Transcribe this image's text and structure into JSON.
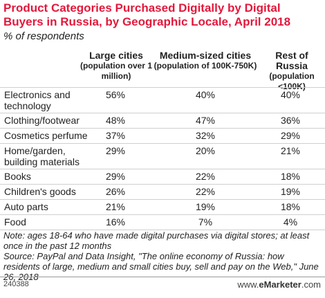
{
  "title": "Product Categories Purchased Digitally by Digital Buyers in Russia, by Geographic Locale, April 2018",
  "subtitle": "% of respondents",
  "columns": [
    {
      "main": "Large cities",
      "sub": "(population over 1 million)"
    },
    {
      "main": "Medium-sized cities",
      "sub": "(population of 100K-750K)"
    },
    {
      "main": "Rest of Russia",
      "sub": "(population <100K)"
    }
  ],
  "rows": [
    {
      "category": "Electronics and technology",
      "values": [
        "56%",
        "40%",
        "40%"
      ]
    },
    {
      "category": "Clothing/footwear",
      "values": [
        "48%",
        "47%",
        "36%"
      ]
    },
    {
      "category": "Cosmetics perfume",
      "values": [
        "37%",
        "32%",
        "29%"
      ]
    },
    {
      "category": "Home/garden, building materials",
      "values": [
        "29%",
        "20%",
        "21%"
      ]
    },
    {
      "category": "Books",
      "values": [
        "29%",
        "22%",
        "18%"
      ]
    },
    {
      "category": "Children's goods",
      "values": [
        "26%",
        "22%",
        "19%"
      ]
    },
    {
      "category": "Auto parts",
      "values": [
        "21%",
        "19%",
        "18%"
      ]
    },
    {
      "category": "Food",
      "values": [
        "16%",
        "7%",
        "4%"
      ]
    }
  ],
  "note": "Note: ages 18-64 who have made digital purchases via digital stores; at least once in the past 12 months",
  "source": "Source: PayPal and Data Insight, \"The online economy of Russia: how residents of large, medium and small cities buy, sell and pay on the Web,\" June 26, 2018",
  "footer": {
    "code": "240388",
    "brand_prefix": "www.",
    "brand_name": "eMarketer",
    "brand_suffix": ".com"
  },
  "colors": {
    "title": "#e2193c",
    "text": "#222222",
    "rule": "#cfcfcf"
  },
  "chart_data": {
    "type": "table",
    "title": "Product Categories Purchased Digitally by Digital Buyers in Russia, by Geographic Locale, April 2018",
    "subtitle": "% of respondents",
    "categories": [
      "Electronics and technology",
      "Clothing/footwear",
      "Cosmetics perfume",
      "Home/garden, building materials",
      "Books",
      "Children's goods",
      "Auto parts",
      "Food"
    ],
    "series": [
      {
        "name": "Large cities (population over 1 million)",
        "values": [
          56,
          48,
          37,
          29,
          29,
          26,
          21,
          16
        ]
      },
      {
        "name": "Medium-sized cities (population of 100K-750K)",
        "values": [
          40,
          47,
          32,
          20,
          22,
          22,
          19,
          7
        ]
      },
      {
        "name": "Rest of Russia (population <100K)",
        "values": [
          40,
          36,
          29,
          21,
          18,
          19,
          18,
          4
        ]
      }
    ]
  }
}
